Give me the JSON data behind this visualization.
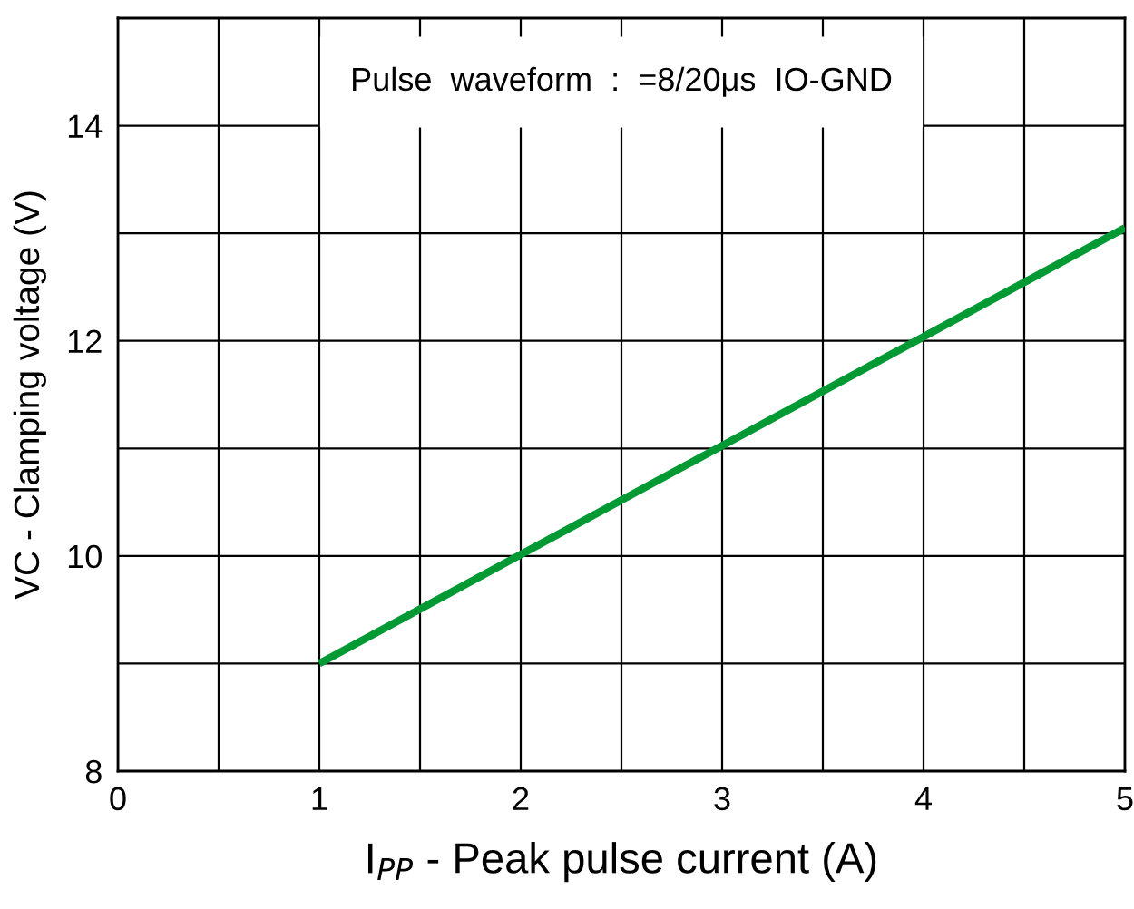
{
  "chart_data": {
    "type": "line",
    "xlabel": "I$_{PP}$ - Peak pulse current (A)",
    "ylabel": "VC - Clamping voltage (V)",
    "annotations": [
      "Pulse  waveform  :  =8/20μs  IO-GND"
    ],
    "x": [
      1,
      5
    ],
    "series": [
      {
        "color": "#009933",
        "values": [
          9.0,
          13.05
        ]
      }
    ],
    "xlim": [
      0,
      5
    ],
    "ylim": [
      8,
      15
    ],
    "xticks": [
      0,
      {
        "value": 0.5,
        "label": null
      },
      1,
      {
        "value": 1.5,
        "label": null
      },
      2,
      {
        "value": 2.5,
        "label": null
      },
      3,
      {
        "value": 3.5,
        "label": null
      },
      4,
      {
        "value": 4.5,
        "label": null
      },
      5
    ],
    "yticks": [
      8,
      {
        "value": 9,
        "label": null
      },
      10,
      {
        "value": 11,
        "label": null
      },
      12,
      {
        "value": 13,
        "label": null
      },
      14
    ],
    "grid": true,
    "marker": "none",
    "line_style": "solid"
  }
}
